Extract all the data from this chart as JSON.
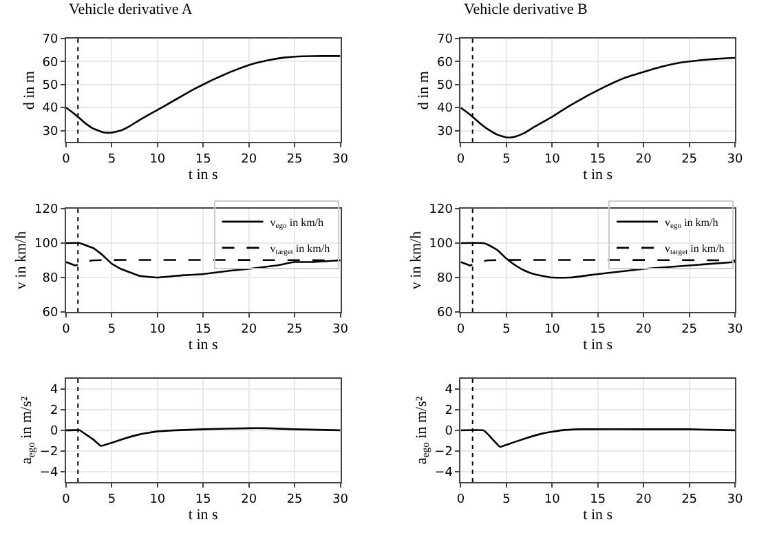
{
  "chart_data": [
    {
      "type": "line",
      "title": "Vehicle derivative A",
      "xlabel": "t in s",
      "ylabel": "d in m",
      "xlim": [
        0,
        30
      ],
      "xticks": [
        0,
        5,
        10,
        15,
        20,
        25,
        30
      ],
      "ylim": [
        25,
        70
      ],
      "yticks": [
        30,
        40,
        50,
        60,
        70
      ],
      "grid": true,
      "legend": false,
      "ref_lines": [
        {
          "axis": "x",
          "value": 1.3,
          "color": "#000000",
          "line_style": "dotted"
        }
      ],
      "series": [
        {
          "color": "#000000",
          "line_style": "solid",
          "x": [
            0,
            1,
            2,
            3,
            4,
            4.7,
            5,
            6,
            7,
            8,
            10,
            12,
            14,
            16,
            18,
            20,
            22,
            24,
            26,
            28,
            30
          ],
          "values": [
            40,
            37,
            33.5,
            30.8,
            29.3,
            29,
            29.1,
            30,
            32,
            34.5,
            39,
            43.5,
            48,
            52,
            55.5,
            58.5,
            60.5,
            61.8,
            62.3,
            62.4,
            62.4
          ]
        }
      ]
    },
    {
      "type": "line",
      "title": "Vehicle derivative B",
      "xlabel": "t in s",
      "ylabel": "d in m",
      "xlim": [
        0,
        30
      ],
      "xticks": [
        0,
        5,
        10,
        15,
        20,
        25,
        30
      ],
      "ylim": [
        25,
        70
      ],
      "yticks": [
        30,
        40,
        50,
        60,
        70
      ],
      "grid": true,
      "legend": false,
      "ref_lines": [
        {
          "axis": "x",
          "value": 1.3,
          "color": "#000000",
          "line_style": "dotted"
        }
      ],
      "series": [
        {
          "color": "#000000",
          "line_style": "solid",
          "x": [
            0,
            1,
            2,
            3,
            4,
            5,
            5.5,
            6,
            7,
            8,
            10,
            12,
            14,
            16,
            18,
            20,
            22,
            24,
            26,
            28,
            30
          ],
          "values": [
            40,
            37,
            33.5,
            30.5,
            28.2,
            27,
            27,
            27.4,
            29,
            31.5,
            36,
            41,
            45.5,
            49.5,
            53,
            55.5,
            57.8,
            59.5,
            60.5,
            61.2,
            61.6
          ]
        }
      ]
    },
    {
      "type": "line",
      "xlabel": "t in s",
      "ylabel": "v in km/h",
      "xlim": [
        0,
        30
      ],
      "xticks": [
        0,
        5,
        10,
        15,
        20,
        25,
        30
      ],
      "ylim": [
        60,
        120
      ],
      "yticks": [
        60,
        80,
        100,
        120
      ],
      "grid": true,
      "legend": "top right",
      "ref_lines": [
        {
          "axis": "x",
          "value": 1.3,
          "color": "#000000",
          "line_style": "dotted"
        }
      ],
      "series": [
        {
          "name": "v$_{ego}$ in km/h",
          "color": "#000000",
          "line_style": "solid",
          "x": [
            0,
            1.5,
            2,
            3,
            4,
            5,
            6,
            7,
            8,
            10,
            12,
            15,
            18,
            20,
            23,
            25,
            27,
            30
          ],
          "values": [
            100,
            100,
            99,
            97,
            93,
            88,
            85,
            83,
            81,
            80,
            81,
            82,
            84,
            85,
            87,
            89,
            89,
            90
          ]
        },
        {
          "name": "v$_{target}$ in km/h",
          "color": "#000000",
          "line_style": "dashed",
          "x": [
            0,
            0.5,
            1,
            1.5,
            2,
            3,
            30
          ],
          "values": [
            89,
            88,
            87,
            88,
            89,
            90,
            90
          ]
        }
      ]
    },
    {
      "type": "line",
      "xlabel": "t in s",
      "ylabel": "v in km/h",
      "xlim": [
        0,
        30
      ],
      "xticks": [
        0,
        5,
        10,
        15,
        20,
        25,
        30
      ],
      "ylim": [
        60,
        120
      ],
      "yticks": [
        60,
        80,
        100,
        120
      ],
      "grid": true,
      "legend": "top right",
      "ref_lines": [
        {
          "axis": "x",
          "value": 1.3,
          "color": "#000000",
          "line_style": "dotted"
        }
      ],
      "series": [
        {
          "name": "v$_{ego}$ in km/h",
          "color": "#000000",
          "line_style": "solid",
          "x": [
            0,
            2.5,
            3,
            4,
            5,
            6,
            7,
            8,
            10,
            12,
            15,
            20,
            25,
            30
          ],
          "values": [
            100,
            100,
            99,
            96,
            91,
            87,
            84,
            82,
            80,
            80,
            82,
            85,
            87,
            89
          ]
        },
        {
          "name": "v$_{target}$ in km/h",
          "color": "#000000",
          "line_style": "dashed",
          "x": [
            0,
            0.5,
            1,
            1.5,
            2,
            3,
            30
          ],
          "values": [
            89,
            88,
            87,
            88,
            89,
            90,
            90
          ]
        }
      ]
    },
    {
      "type": "line",
      "xlabel": "t in s",
      "ylabel": "a$_{ego}$ in m/s²",
      "xlim": [
        0,
        30
      ],
      "xticks": [
        0,
        5,
        10,
        15,
        20,
        25,
        30
      ],
      "ylim": [
        -5,
        5
      ],
      "yticks": [
        -4,
        -2,
        0,
        2,
        4
      ],
      "grid": true,
      "legend": false,
      "ref_lines": [
        {
          "axis": "x",
          "value": 1.3,
          "color": "#000000",
          "line_style": "dotted"
        }
      ],
      "series": [
        {
          "color": "#000000",
          "line_style": "solid",
          "x": [
            0,
            1.5,
            2,
            3,
            3.8,
            5,
            6,
            8,
            10,
            12,
            15,
            20,
            22,
            25,
            30
          ],
          "values": [
            0,
            0,
            -0.3,
            -0.9,
            -1.5,
            -1.2,
            -0.9,
            -0.4,
            -0.1,
            0,
            0.1,
            0.2,
            0.2,
            0.1,
            0
          ]
        }
      ]
    },
    {
      "type": "line",
      "xlabel": "t in s",
      "ylabel": "a$_{ego}$ in m/s²",
      "xlim": [
        0,
        30
      ],
      "xticks": [
        0,
        5,
        10,
        15,
        20,
        25,
        30
      ],
      "ylim": [
        -5,
        5
      ],
      "yticks": [
        -4,
        -2,
        0,
        2,
        4
      ],
      "grid": true,
      "legend": false,
      "ref_lines": [
        {
          "axis": "x",
          "value": 1.3,
          "color": "#000000",
          "line_style": "dotted"
        }
      ],
      "series": [
        {
          "color": "#000000",
          "line_style": "solid",
          "x": [
            0,
            2.5,
            3,
            4.3,
            5,
            7,
            9,
            11,
            13,
            20,
            25,
            30
          ],
          "values": [
            0,
            0,
            -0.4,
            -1.6,
            -1.4,
            -0.8,
            -0.3,
            0,
            0.1,
            0.1,
            0.1,
            0
          ]
        }
      ]
    }
  ]
}
